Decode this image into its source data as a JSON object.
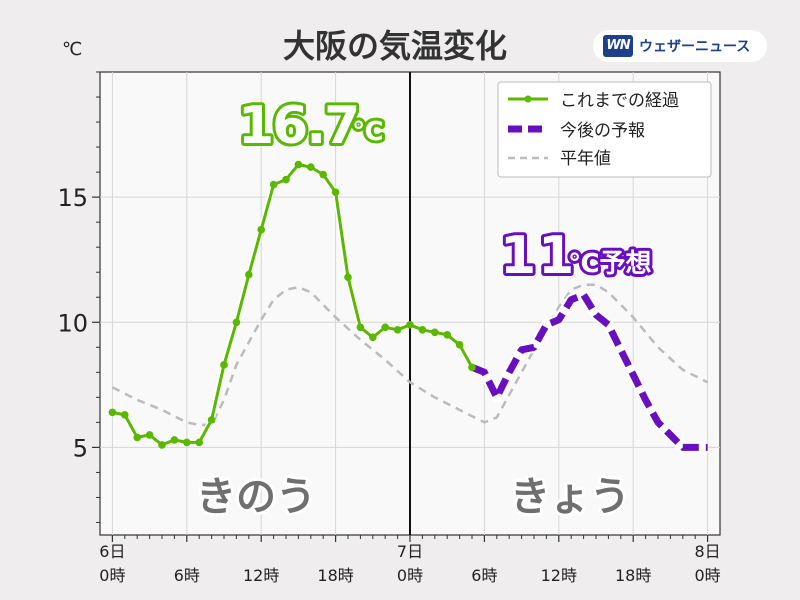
{
  "brand": {
    "logo_text": "WN",
    "name": "ウェザーニュース",
    "color": "#1d3f8c"
  },
  "chart_data": {
    "type": "line",
    "title": "大阪の気温変化",
    "yunit": "℃",
    "ylim": [
      1.5,
      20
    ],
    "xlim": [
      -1,
      49
    ],
    "yticks": [
      5,
      10,
      15
    ],
    "y_minor_step": 1,
    "x_major_ticks": [
      0,
      6,
      12,
      18,
      24,
      30,
      36,
      42,
      48
    ],
    "x_tick_labels": [
      [
        "6日",
        "0時"
      ],
      [
        "",
        "6時"
      ],
      [
        "",
        "12時"
      ],
      [
        "",
        "18時"
      ],
      [
        "7日",
        "0時"
      ],
      [
        "",
        "6時"
      ],
      [
        "",
        "12時"
      ],
      [
        "",
        "18時"
      ],
      [
        "8日",
        "0時"
      ]
    ],
    "divider_x": 24,
    "grid": true,
    "legend_position": "top-right",
    "series": [
      {
        "name": "これまでの経過",
        "style": "solid-markers",
        "color": "#59b800",
        "x": [
          0,
          1,
          2,
          3,
          4,
          5,
          6,
          7,
          8,
          9,
          10,
          11,
          12,
          13,
          14,
          15,
          16,
          17,
          18,
          19,
          20,
          21,
          22,
          23,
          24,
          25,
          26,
          27,
          28,
          29
        ],
        "values": [
          6.4,
          6.3,
          5.4,
          5.5,
          5.1,
          5.3,
          5.2,
          5.2,
          6.1,
          8.3,
          10.0,
          11.9,
          13.7,
          15.5,
          15.7,
          16.3,
          16.2,
          15.9,
          15.2,
          11.8,
          9.8,
          9.4,
          9.8,
          9.7,
          9.9,
          9.7,
          9.6,
          9.5,
          9.1,
          8.2
        ]
      },
      {
        "name": "今後の予報",
        "style": "thick-dash",
        "color": "#6a0fc0",
        "x": [
          29,
          30,
          31,
          32,
          33,
          34,
          35,
          36,
          37,
          38,
          39,
          40,
          41,
          42,
          43,
          44,
          45,
          46,
          47,
          48
        ],
        "values": [
          8.2,
          8.0,
          7.0,
          8.0,
          8.9,
          9.0,
          9.9,
          10.1,
          10.9,
          11.1,
          10.3,
          9.9,
          8.9,
          7.9,
          6.9,
          6.0,
          5.5,
          5.0,
          5.0,
          5.0
        ]
      },
      {
        "name": "平年値",
        "style": "dashed",
        "color": "#bbbbbb",
        "x": [
          0,
          2,
          4,
          6,
          7,
          8,
          9,
          10,
          12,
          13,
          14,
          15,
          16,
          18,
          20,
          22,
          24,
          26,
          28,
          30,
          31,
          32,
          34,
          36,
          37,
          38,
          39,
          40,
          42,
          44,
          46,
          48
        ],
        "values": [
          7.4,
          6.9,
          6.5,
          6.0,
          5.9,
          5.9,
          6.9,
          8.3,
          10.1,
          10.9,
          11.3,
          11.4,
          11.2,
          10.2,
          9.3,
          8.5,
          7.6,
          7.0,
          6.5,
          6.0,
          6.2,
          7.1,
          8.9,
          10.6,
          11.3,
          11.5,
          11.5,
          11.2,
          10.2,
          9.0,
          8.1,
          7.6
        ]
      }
    ],
    "annotations": {
      "max_label_value": "16.7",
      "max_label_unit": "℃",
      "forecast_label_value": "11",
      "forecast_label_suffix": "℃予想",
      "yesterday": "きのう",
      "today": "きょう"
    }
  }
}
